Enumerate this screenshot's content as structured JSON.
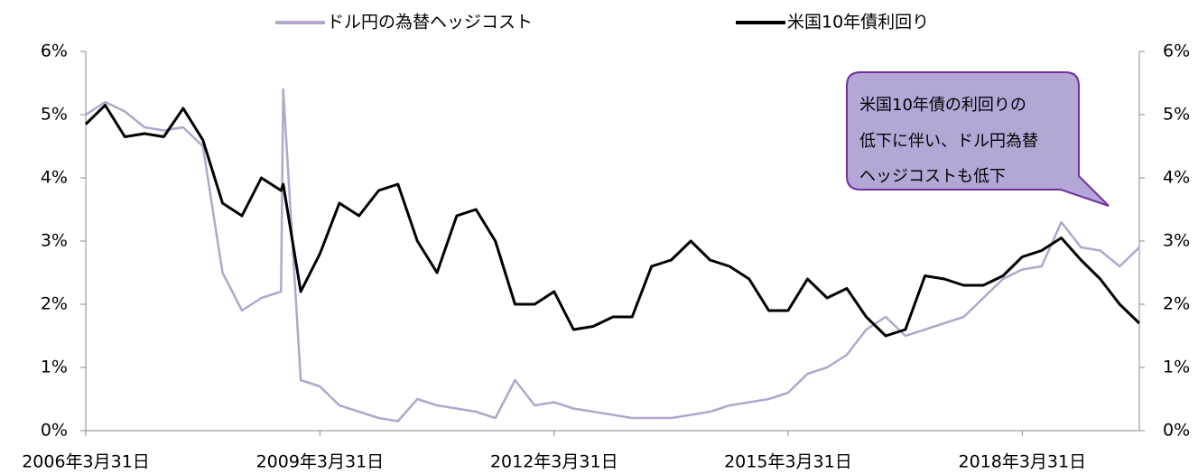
{
  "chart_data": {
    "type": "line",
    "x": [
      "2006-03-31",
      "2006-06-30",
      "2006-09-30",
      "2006-12-31",
      "2007-03-31",
      "2007-06-30",
      "2007-09-30",
      "2007-12-31",
      "2008-03-31",
      "2008-06-30",
      "2008-09-30",
      "2008-10-10",
      "2008-12-31",
      "2009-03-31",
      "2009-06-30",
      "2009-09-30",
      "2009-12-31",
      "2010-03-31",
      "2010-06-30",
      "2010-09-30",
      "2010-12-31",
      "2011-03-31",
      "2011-06-30",
      "2011-09-30",
      "2011-12-31",
      "2012-03-31",
      "2012-06-30",
      "2012-09-30",
      "2012-12-31",
      "2013-03-31",
      "2013-06-30",
      "2013-09-30",
      "2013-12-31",
      "2014-03-31",
      "2014-06-30",
      "2014-09-30",
      "2014-12-31",
      "2015-03-31",
      "2015-06-30",
      "2015-09-30",
      "2015-12-31",
      "2016-03-31",
      "2016-06-30",
      "2016-09-30",
      "2016-12-31",
      "2017-03-31",
      "2017-06-30",
      "2017-09-30",
      "2017-12-31",
      "2018-03-31",
      "2018-06-30",
      "2018-09-30",
      "2018-12-31",
      "2019-03-31",
      "2019-06-30",
      "2019-09-30"
    ],
    "series": [
      {
        "name": "ドル円の為替ヘッジコスト",
        "color": "#b3a6cc",
        "values": [
          5.0,
          5.2,
          5.05,
          4.8,
          4.75,
          4.8,
          4.5,
          2.5,
          1.9,
          2.1,
          2.2,
          5.4,
          0.8,
          0.7,
          0.4,
          0.3,
          0.2,
          0.15,
          0.5,
          0.4,
          0.35,
          0.3,
          0.2,
          0.8,
          0.4,
          0.45,
          0.35,
          0.3,
          0.25,
          0.2,
          0.2,
          0.2,
          0.25,
          0.3,
          0.4,
          0.45,
          0.5,
          0.6,
          0.9,
          1.0,
          1.2,
          1.6,
          1.8,
          1.5,
          1.6,
          1.7,
          1.8,
          2.1,
          2.4,
          2.55,
          2.6,
          3.3,
          2.9,
          2.85,
          2.6,
          2.9
        ]
      },
      {
        "name": "米国10年債利回り",
        "color": "#000000",
        "values": [
          4.85,
          5.15,
          4.65,
          4.7,
          4.65,
          5.1,
          4.6,
          3.6,
          3.4,
          4.0,
          3.8,
          3.9,
          2.2,
          2.8,
          3.6,
          3.4,
          3.8,
          3.9,
          3.0,
          2.5,
          3.4,
          3.5,
          3.0,
          2.0,
          2.0,
          2.2,
          1.6,
          1.65,
          1.8,
          1.8,
          2.6,
          2.7,
          3.0,
          2.7,
          2.6,
          2.4,
          1.9,
          1.9,
          2.4,
          2.1,
          2.25,
          1.8,
          1.5,
          1.6,
          2.45,
          2.4,
          2.3,
          2.3,
          2.45,
          2.75,
          2.85,
          3.05,
          2.7,
          2.4,
          2.0,
          1.7
        ]
      }
    ],
    "xlim": [
      "2006-03-31",
      "2019-09-30"
    ],
    "xticks": [
      {
        "value": "2006-03-31",
        "label": "2006年3月31日"
      },
      {
        "value": "2009-03-31",
        "label": "2009年3月31日"
      },
      {
        "value": "2012-03-31",
        "label": "2012年3月31日"
      },
      {
        "value": "2015-03-31",
        "label": "2015年3月31日"
      },
      {
        "value": "2018-03-31",
        "label": "2018年3月31日"
      }
    ],
    "ylim": [
      0,
      6
    ],
    "yticks": [
      {
        "value": 0,
        "label": "0%"
      },
      {
        "value": 1,
        "label": "1%"
      },
      {
        "value": 2,
        "label": "2%"
      },
      {
        "value": 3,
        "label": "3%"
      },
      {
        "value": 4,
        "label": "4%"
      },
      {
        "value": 5,
        "label": "5%"
      },
      {
        "value": 6,
        "label": "6%"
      }
    ],
    "y2lim": [
      0,
      6
    ],
    "y2ticks": [
      {
        "value": 0,
        "label": "0%"
      },
      {
        "value": 1,
        "label": "1%"
      },
      {
        "value": 2,
        "label": "2%"
      },
      {
        "value": 3,
        "label": "3%"
      },
      {
        "value": 4,
        "label": "4%"
      },
      {
        "value": 5,
        "label": "5%"
      },
      {
        "value": 6,
        "label": "6%"
      }
    ],
    "annotation": [
      "米国10年債の利回りの",
      "低下に伴い、ドル円為替",
      "ヘッジコストも低下"
    ]
  }
}
